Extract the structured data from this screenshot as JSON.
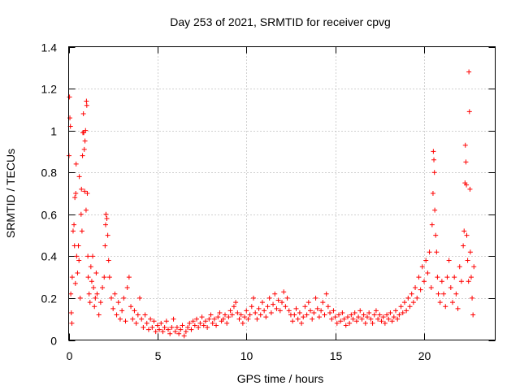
{
  "chart_data": {
    "type": "scatter",
    "title": "Day 253 of 2021, SRMTID for receiver cpvg",
    "xlabel": "GPS time / hours",
    "ylabel": "SRMTID / TECUs",
    "xlim": [
      0,
      24
    ],
    "ylim": [
      0,
      1.4
    ],
    "xticks": [
      0,
      5,
      10,
      15,
      20
    ],
    "yticks": [
      0,
      0.2,
      0.4,
      0.6,
      0.8,
      1,
      1.2,
      1.4
    ],
    "xtick_labels": [
      "0",
      "5",
      "10",
      "15",
      "20"
    ],
    "ytick_labels": [
      "0",
      "0.2",
      "0.4",
      "0.6",
      "0.8",
      "1",
      "1.2",
      "1.4"
    ],
    "grid": true,
    "marker": "+",
    "color": "#ff0000",
    "series": [
      {
        "name": "SRMTID",
        "points": [
          [
            0.02,
            0.88
          ],
          [
            0.05,
            1.16
          ],
          [
            0.07,
            1.06
          ],
          [
            0.1,
            1.02
          ],
          [
            0.12,
            0.22
          ],
          [
            0.15,
            0.13
          ],
          [
            0.18,
            0.08
          ],
          [
            0.2,
            0.3
          ],
          [
            0.25,
            0.52
          ],
          [
            0.3,
            0.55
          ],
          [
            0.33,
            0.45
          ],
          [
            0.35,
            0.68
          ],
          [
            0.38,
            0.27
          ],
          [
            0.4,
            0.7
          ],
          [
            0.42,
            0.84
          ],
          [
            0.45,
            0.4
          ],
          [
            0.5,
            0.32
          ],
          [
            0.55,
            0.45
          ],
          [
            0.58,
            0.38
          ],
          [
            0.6,
            0.78
          ],
          [
            0.65,
            0.2
          ],
          [
            0.7,
            0.6
          ],
          [
            0.72,
            0.72
          ],
          [
            0.75,
            0.52
          ],
          [
            0.78,
            0.88
          ],
          [
            0.8,
            0.99
          ],
          [
            0.83,
            1.08
          ],
          [
            0.85,
            0.99
          ],
          [
            0.88,
            0.91
          ],
          [
            0.9,
            0.71
          ],
          [
            0.92,
            0.95
          ],
          [
            0.95,
            1.0
          ],
          [
            0.98,
            0.62
          ],
          [
            1.0,
            1.14
          ],
          [
            1.02,
            1.12
          ],
          [
            1.05,
            0.7
          ],
          [
            1.08,
            0.4
          ],
          [
            1.1,
            0.3
          ],
          [
            1.15,
            0.22
          ],
          [
            1.2,
            0.18
          ],
          [
            1.25,
            0.35
          ],
          [
            1.3,
            0.28
          ],
          [
            1.35,
            0.4
          ],
          [
            1.4,
            0.25
          ],
          [
            1.45,
            0.16
          ],
          [
            1.5,
            0.2
          ],
          [
            1.55,
            0.32
          ],
          [
            1.6,
            0.22
          ],
          [
            1.7,
            0.12
          ],
          [
            1.8,
            0.18
          ],
          [
            1.9,
            0.25
          ],
          [
            2.0,
            0.3
          ],
          [
            2.05,
            0.45
          ],
          [
            2.08,
            0.55
          ],
          [
            2.1,
            0.6
          ],
          [
            2.15,
            0.58
          ],
          [
            2.2,
            0.5
          ],
          [
            2.25,
            0.38
          ],
          [
            2.3,
            0.3
          ],
          [
            2.4,
            0.2
          ],
          [
            2.5,
            0.15
          ],
          [
            2.6,
            0.22
          ],
          [
            2.7,
            0.12
          ],
          [
            2.8,
            0.18
          ],
          [
            2.9,
            0.1
          ],
          [
            3.0,
            0.14
          ],
          [
            3.1,
            0.2
          ],
          [
            3.2,
            0.09
          ],
          [
            3.3,
            0.25
          ],
          [
            3.4,
            0.3
          ],
          [
            3.5,
            0.16
          ],
          [
            3.6,
            0.1
          ],
          [
            3.7,
            0.14
          ],
          [
            3.8,
            0.08
          ],
          [
            3.9,
            0.12
          ],
          [
            4.0,
            0.2
          ],
          [
            4.1,
            0.1
          ],
          [
            4.2,
            0.06
          ],
          [
            4.3,
            0.12
          ],
          [
            4.4,
            0.08
          ],
          [
            4.5,
            0.05
          ],
          [
            4.6,
            0.1
          ],
          [
            4.7,
            0.06
          ],
          [
            4.8,
            0.09
          ],
          [
            4.9,
            0.04
          ],
          [
            5.0,
            0.07
          ],
          [
            5.1,
            0.05
          ],
          [
            5.2,
            0.08
          ],
          [
            5.3,
            0.04
          ],
          [
            5.4,
            0.06
          ],
          [
            5.5,
            0.09
          ],
          [
            5.6,
            0.05
          ],
          [
            5.7,
            0.03
          ],
          [
            5.8,
            0.06
          ],
          [
            5.9,
            0.1
          ],
          [
            6.0,
            0.04
          ],
          [
            6.1,
            0.06
          ],
          [
            6.2,
            0.03
          ],
          [
            6.3,
            0.05
          ],
          [
            6.4,
            0.07
          ],
          [
            6.5,
            0.02
          ],
          [
            6.6,
            0.04
          ],
          [
            6.7,
            0.06
          ],
          [
            6.8,
            0.08
          ],
          [
            6.9,
            0.05
          ],
          [
            7.0,
            0.09
          ],
          [
            7.1,
            0.07
          ],
          [
            7.2,
            0.1
          ],
          [
            7.3,
            0.06
          ],
          [
            7.4,
            0.08
          ],
          [
            7.5,
            0.11
          ],
          [
            7.6,
            0.07
          ],
          [
            7.7,
            0.09
          ],
          [
            7.8,
            0.06
          ],
          [
            7.9,
            0.1
          ],
          [
            8.0,
            0.12
          ],
          [
            8.1,
            0.08
          ],
          [
            8.2,
            0.1
          ],
          [
            8.3,
            0.07
          ],
          [
            8.4,
            0.11
          ],
          [
            8.5,
            0.13
          ],
          [
            8.6,
            0.09
          ],
          [
            8.7,
            0.1
          ],
          [
            8.8,
            0.12
          ],
          [
            8.9,
            0.08
          ],
          [
            9.0,
            0.11
          ],
          [
            9.1,
            0.14
          ],
          [
            9.2,
            0.12
          ],
          [
            9.3,
            0.16
          ],
          [
            9.4,
            0.18
          ],
          [
            9.5,
            0.13
          ],
          [
            9.6,
            0.1
          ],
          [
            9.7,
            0.12
          ],
          [
            9.8,
            0.08
          ],
          [
            9.9,
            0.11
          ],
          [
            10.0,
            0.14
          ],
          [
            10.1,
            0.1
          ],
          [
            10.2,
            0.12
          ],
          [
            10.3,
            0.16
          ],
          [
            10.4,
            0.2
          ],
          [
            10.5,
            0.13
          ],
          [
            10.6,
            0.1
          ],
          [
            10.7,
            0.15
          ],
          [
            10.8,
            0.12
          ],
          [
            10.9,
            0.18
          ],
          [
            11.0,
            0.14
          ],
          [
            11.1,
            0.11
          ],
          [
            11.2,
            0.16
          ],
          [
            11.3,
            0.2
          ],
          [
            11.4,
            0.13
          ],
          [
            11.5,
            0.17
          ],
          [
            11.6,
            0.22
          ],
          [
            11.7,
            0.15
          ],
          [
            11.8,
            0.19
          ],
          [
            11.9,
            0.14
          ],
          [
            12.0,
            0.18
          ],
          [
            12.1,
            0.23
          ],
          [
            12.2,
            0.16
          ],
          [
            12.3,
            0.2
          ],
          [
            12.4,
            0.14
          ],
          [
            12.5,
            0.12
          ],
          [
            12.6,
            0.09
          ],
          [
            12.7,
            0.12
          ],
          [
            12.8,
            0.15
          ],
          [
            12.9,
            0.1
          ],
          [
            13.0,
            0.13
          ],
          [
            13.1,
            0.08
          ],
          [
            13.2,
            0.11
          ],
          [
            13.3,
            0.16
          ],
          [
            13.4,
            0.12
          ],
          [
            13.5,
            0.18
          ],
          [
            13.6,
            0.14
          ],
          [
            13.7,
            0.1
          ],
          [
            13.8,
            0.13
          ],
          [
            13.9,
            0.2
          ],
          [
            14.0,
            0.15
          ],
          [
            14.1,
            0.11
          ],
          [
            14.2,
            0.14
          ],
          [
            14.3,
            0.18
          ],
          [
            14.4,
            0.12
          ],
          [
            14.5,
            0.22
          ],
          [
            14.6,
            0.16
          ],
          [
            14.7,
            0.13
          ],
          [
            14.8,
            0.1
          ],
          [
            14.9,
            0.14
          ],
          [
            15.0,
            0.11
          ],
          [
            15.1,
            0.08
          ],
          [
            15.2,
            0.12
          ],
          [
            15.3,
            0.09
          ],
          [
            15.4,
            0.13
          ],
          [
            15.5,
            0.1
          ],
          [
            15.6,
            0.07
          ],
          [
            15.7,
            0.11
          ],
          [
            15.8,
            0.08
          ],
          [
            15.9,
            0.12
          ],
          [
            16.0,
            0.1
          ],
          [
            16.1,
            0.13
          ],
          [
            16.2,
            0.09
          ],
          [
            16.3,
            0.11
          ],
          [
            16.4,
            0.14
          ],
          [
            16.5,
            0.1
          ],
          [
            16.6,
            0.12
          ],
          [
            16.7,
            0.08
          ],
          [
            16.8,
            0.11
          ],
          [
            16.9,
            0.13
          ],
          [
            17.0,
            0.1
          ],
          [
            17.1,
            0.08
          ],
          [
            17.2,
            0.12
          ],
          [
            17.3,
            0.14
          ],
          [
            17.4,
            0.1
          ],
          [
            17.5,
            0.12
          ],
          [
            17.6,
            0.09
          ],
          [
            17.7,
            0.11
          ],
          [
            17.8,
            0.08
          ],
          [
            17.9,
            0.12
          ],
          [
            18.0,
            0.1
          ],
          [
            18.1,
            0.13
          ],
          [
            18.2,
            0.09
          ],
          [
            18.3,
            0.11
          ],
          [
            18.4,
            0.14
          ],
          [
            18.5,
            0.1
          ],
          [
            18.6,
            0.12
          ],
          [
            18.7,
            0.16
          ],
          [
            18.8,
            0.13
          ],
          [
            18.9,
            0.18
          ],
          [
            19.0,
            0.14
          ],
          [
            19.1,
            0.2
          ],
          [
            19.2,
            0.16
          ],
          [
            19.3,
            0.22
          ],
          [
            19.4,
            0.18
          ],
          [
            19.5,
            0.25
          ],
          [
            19.6,
            0.2
          ],
          [
            19.7,
            0.3
          ],
          [
            19.8,
            0.24
          ],
          [
            19.9,
            0.35
          ],
          [
            20.0,
            0.28
          ],
          [
            20.1,
            0.38
          ],
          [
            20.2,
            0.32
          ],
          [
            20.3,
            0.42
          ],
          [
            20.4,
            0.25
          ],
          [
            20.45,
            0.55
          ],
          [
            20.5,
            0.7
          ],
          [
            20.52,
            0.9
          ],
          [
            20.55,
            0.86
          ],
          [
            20.58,
            0.8
          ],
          [
            20.6,
            0.62
          ],
          [
            20.65,
            0.5
          ],
          [
            20.7,
            0.42
          ],
          [
            20.75,
            0.3
          ],
          [
            20.8,
            0.22
          ],
          [
            20.9,
            0.18
          ],
          [
            21.0,
            0.28
          ],
          [
            21.1,
            0.22
          ],
          [
            21.2,
            0.16
          ],
          [
            21.3,
            0.3
          ],
          [
            21.4,
            0.38
          ],
          [
            21.5,
            0.25
          ],
          [
            21.6,
            0.18
          ],
          [
            21.7,
            0.3
          ],
          [
            21.8,
            0.22
          ],
          [
            21.9,
            0.15
          ],
          [
            22.0,
            0.35
          ],
          [
            22.1,
            0.28
          ],
          [
            22.2,
            0.45
          ],
          [
            22.25,
            0.52
          ],
          [
            22.3,
            0.75
          ],
          [
            22.32,
            0.93
          ],
          [
            22.35,
            0.85
          ],
          [
            22.38,
            0.74
          ],
          [
            22.4,
            0.5
          ],
          [
            22.45,
            0.38
          ],
          [
            22.5,
            0.28
          ],
          [
            22.52,
            1.28
          ],
          [
            22.55,
            1.09
          ],
          [
            22.58,
            0.72
          ],
          [
            22.6,
            0.42
          ],
          [
            22.65,
            0.3
          ],
          [
            22.7,
            0.2
          ],
          [
            22.75,
            0.12
          ],
          [
            22.8,
            0.35
          ]
        ]
      }
    ]
  }
}
